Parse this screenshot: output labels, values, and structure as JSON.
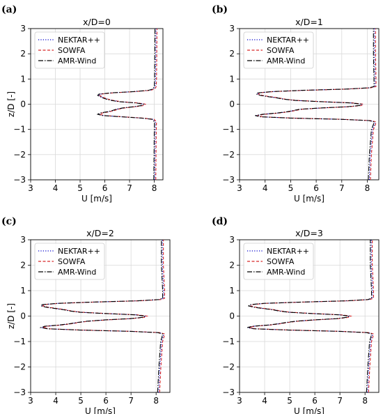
{
  "chart_data": [
    {
      "type": "line",
      "panel_label": "(a)",
      "title": "x/D=0",
      "xlabel": "U [m/s]",
      "ylabel": "z/D [-]",
      "xlim": [
        3,
        8.35
      ],
      "ylim": [
        -3,
        3
      ],
      "xticks": [
        "3",
        "4",
        "5",
        "6",
        "7",
        "8"
      ],
      "yticks": [
        "−3",
        "−2",
        "−1",
        "0",
        "1",
        "2",
        "3"
      ],
      "grid": true,
      "legend": "top-left",
      "series": [
        {
          "name": "NEKTAR++",
          "color": "#0000cc",
          "dash": "dotted"
        },
        {
          "name": "SOWFA",
          "color": "#d62728",
          "dash": "dashed"
        },
        {
          "name": "AMR-Wind",
          "color": "#000000",
          "dash": "dashdot"
        }
      ],
      "profile": {
        "z": [
          -3,
          -1,
          -0.7,
          -0.6,
          -0.55,
          -0.5,
          -0.45,
          -0.4,
          -0.35,
          -0.3,
          -0.25,
          -0.2,
          -0.15,
          -0.1,
          -0.05,
          0,
          0.05,
          0.1,
          0.15,
          0.2,
          0.25,
          0.3,
          0.35,
          0.4,
          0.45,
          0.5,
          0.55,
          0.6,
          0.7,
          1,
          3
        ],
        "u": [
          8.02,
          8.04,
          8.05,
          7.95,
          7.5,
          6.7,
          5.95,
          5.75,
          5.85,
          6.15,
          6.35,
          6.5,
          6.75,
          7.2,
          7.55,
          7.6,
          7.3,
          6.6,
          6.3,
          6.1,
          5.95,
          5.85,
          5.75,
          5.8,
          6.3,
          7.2,
          7.8,
          7.98,
          8.04,
          8.05,
          8.07
        ]
      }
    },
    {
      "type": "line",
      "panel_label": "(b)",
      "title": "x/D=1",
      "xlabel": "U [m/s]",
      "ylabel": "",
      "xlim": [
        3,
        8.45
      ],
      "ylim": [
        -3,
        3
      ],
      "xticks": [
        "3",
        "4",
        "5",
        "6",
        "7",
        "8"
      ],
      "yticks": [
        "−3",
        "−2",
        "−1",
        "0",
        "1",
        "2",
        "3"
      ],
      "grid": true,
      "legend": "top-left",
      "series": [
        {
          "name": "NEKTAR++",
          "color": "#0000cc",
          "dash": "dotted"
        },
        {
          "name": "SOWFA",
          "color": "#d62728",
          "dash": "dashed"
        },
        {
          "name": "AMR-Wind",
          "color": "#000000",
          "dash": "dashdot"
        }
      ],
      "profile": {
        "z": [
          -3,
          -2,
          -1,
          -0.8,
          -0.7,
          -0.65,
          -0.6,
          -0.55,
          -0.5,
          -0.45,
          -0.4,
          -0.35,
          -0.3,
          -0.25,
          -0.2,
          -0.15,
          -0.1,
          -0.05,
          0,
          0.05,
          0.1,
          0.15,
          0.2,
          0.25,
          0.3,
          0.35,
          0.4,
          0.45,
          0.5,
          0.55,
          0.6,
          0.65,
          0.7,
          1,
          2,
          3
        ],
        "u": [
          8.08,
          8.12,
          8.2,
          8.28,
          8.3,
          8.1,
          7.0,
          5.0,
          3.85,
          3.65,
          3.95,
          4.5,
          4.9,
          5.15,
          5.4,
          6.2,
          7.25,
          7.75,
          7.8,
          7.4,
          6.2,
          5.2,
          4.75,
          4.5,
          4.15,
          3.85,
          3.7,
          3.75,
          4.3,
          5.5,
          7.2,
          8.1,
          8.3,
          8.3,
          8.28,
          8.28
        ]
      }
    },
    {
      "type": "line",
      "panel_label": "(c)",
      "title": "x/D=2",
      "xlabel": "U [m/s]",
      "ylabel": "z/D [-]",
      "xlim": [
        3,
        8.55
      ],
      "ylim": [
        -3,
        3
      ],
      "xticks": [
        "3",
        "4",
        "5",
        "6",
        "7",
        "8"
      ],
      "yticks": [
        "−3",
        "−2",
        "−1",
        "0",
        "1",
        "2",
        "3"
      ],
      "grid": true,
      "legend": "top-left",
      "series": [
        {
          "name": "NEKTAR++",
          "color": "#0000cc",
          "dash": "dotted"
        },
        {
          "name": "SOWFA",
          "color": "#d62728",
          "dash": "dashed"
        },
        {
          "name": "AMR-Wind",
          "color": "#000000",
          "dash": "dashdot"
        }
      ],
      "profile": {
        "z": [
          -3,
          -2,
          -1,
          -0.8,
          -0.7,
          -0.65,
          -0.6,
          -0.55,
          -0.5,
          -0.45,
          -0.4,
          -0.35,
          -0.3,
          -0.25,
          -0.2,
          -0.15,
          -0.1,
          -0.05,
          0,
          0.05,
          0.1,
          0.15,
          0.2,
          0.25,
          0.3,
          0.35,
          0.4,
          0.45,
          0.5,
          0.55,
          0.6,
          0.65,
          0.7,
          1,
          2,
          3
        ],
        "u": [
          8.1,
          8.15,
          8.22,
          8.28,
          8.3,
          8.1,
          7.0,
          5.0,
          3.7,
          3.45,
          3.6,
          4.2,
          4.6,
          4.9,
          5.3,
          6.0,
          7.0,
          7.5,
          7.6,
          7.2,
          6.0,
          5.0,
          4.6,
          4.35,
          4.0,
          3.65,
          3.45,
          3.5,
          4.1,
          5.5,
          7.3,
          8.15,
          8.3,
          8.3,
          8.25,
          8.25
        ]
      }
    },
    {
      "type": "line",
      "panel_label": "(d)",
      "title": "x/D=3",
      "xlabel": "U [m/s]",
      "ylabel": "",
      "xlim": [
        3,
        8.55
      ],
      "ylim": [
        -3,
        3
      ],
      "xticks": [
        "3",
        "4",
        "5",
        "6",
        "7",
        "8"
      ],
      "yticks": [
        "−3",
        "−2",
        "−1",
        "0",
        "1",
        "2",
        "3"
      ],
      "grid": true,
      "legend": "top-left",
      "series": [
        {
          "name": "NEKTAR++",
          "color": "#0000cc",
          "dash": "dotted"
        },
        {
          "name": "SOWFA",
          "color": "#d62728",
          "dash": "dashed"
        },
        {
          "name": "AMR-Wind",
          "color": "#000000",
          "dash": "dashdot"
        }
      ],
      "profile": {
        "z": [
          -3,
          -2,
          -1,
          -0.8,
          -0.7,
          -0.65,
          -0.6,
          -0.55,
          -0.5,
          -0.45,
          -0.4,
          -0.35,
          -0.3,
          -0.25,
          -0.2,
          -0.15,
          -0.1,
          -0.05,
          0,
          0.05,
          0.1,
          0.15,
          0.2,
          0.25,
          0.3,
          0.35,
          0.4,
          0.45,
          0.5,
          0.55,
          0.6,
          0.65,
          0.7,
          1,
          2,
          3
        ],
        "u": [
          8.1,
          8.15,
          8.22,
          8.28,
          8.3,
          8.1,
          7.0,
          5.0,
          3.6,
          3.35,
          3.55,
          4.2,
          4.6,
          4.9,
          5.3,
          6.0,
          6.9,
          7.3,
          7.4,
          7.0,
          5.9,
          5.0,
          4.6,
          4.35,
          3.95,
          3.6,
          3.4,
          3.45,
          4.0,
          5.5,
          7.3,
          8.15,
          8.3,
          8.3,
          8.25,
          8.25
        ]
      }
    }
  ]
}
